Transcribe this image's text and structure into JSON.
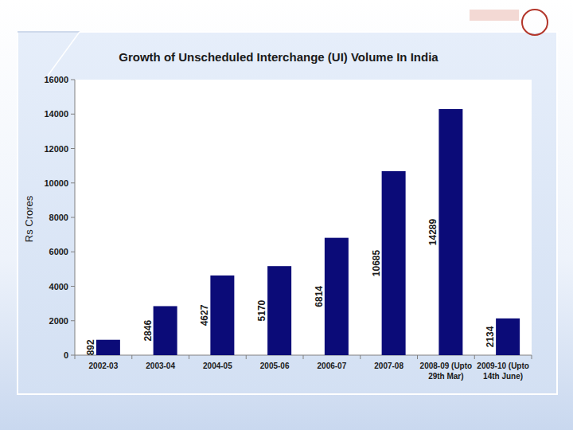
{
  "chart_data": {
    "type": "bar",
    "title": "Growth of Unscheduled Interchange (UI) Volume In India",
    "y_label": "Rs  Crores",
    "categories": [
      "2002-03",
      "2003-04",
      "2004-05",
      "2005-06",
      "2006-07",
      "2007-08",
      "2008-09 (Upto 29th Mar)",
      "2009-10 (Upto 14th June)"
    ],
    "values": [
      892,
      2846,
      4627,
      5170,
      6814,
      10685,
      14289,
      2134
    ],
    "color": "#0b0b78",
    "ylim": [
      0,
      16000
    ],
    "yticks": [
      0,
      2000,
      4000,
      6000,
      8000,
      10000,
      12000,
      14000,
      16000
    ],
    "grid": false,
    "data_labels": true
  }
}
